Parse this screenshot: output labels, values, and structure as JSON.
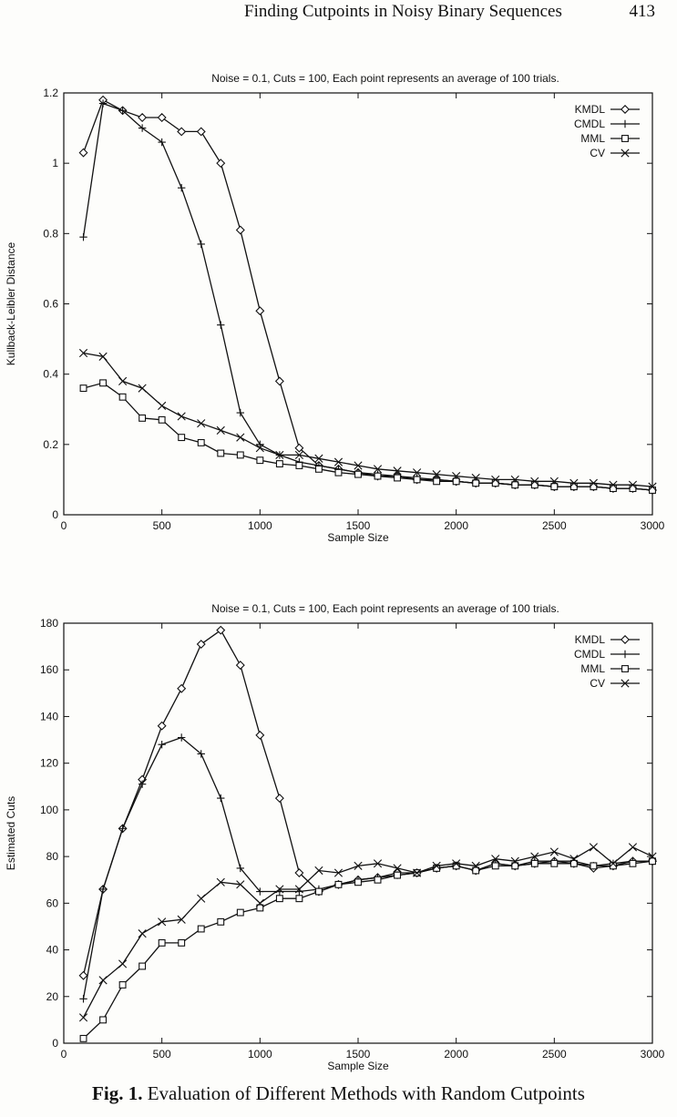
{
  "header": {
    "title": "Finding Cutpoints in Noisy Binary Sequences",
    "page_number": "413"
  },
  "caption": {
    "label": "Fig. 1.",
    "text": "Evaluation of Different Methods with Random Cutpoints"
  },
  "chart_data": [
    {
      "type": "line",
      "title": "Noise = 0.1, Cuts = 100, Each point represents an average of 100 trials.",
      "xlabel": "Sample Size",
      "ylabel": "Kullback-Leibler Distance",
      "xlim": [
        0,
        3000
      ],
      "ylim": [
        0,
        1.2
      ],
      "xticks": [
        0,
        500,
        1000,
        1500,
        2000,
        2500,
        3000
      ],
      "yticks": [
        0,
        0.2,
        0.4,
        0.6,
        0.8,
        1,
        1.2
      ],
      "legend_position": "top-right",
      "x": [
        100,
        200,
        300,
        400,
        500,
        600,
        700,
        800,
        900,
        1000,
        1100,
        1200,
        1300,
        1400,
        1500,
        1600,
        1700,
        1800,
        1900,
        2000,
        2100,
        2200,
        2300,
        2400,
        2500,
        2600,
        2700,
        2800,
        2900,
        3000
      ],
      "series": [
        {
          "name": "KMDL",
          "marker": "diamond",
          "values": [
            1.03,
            1.18,
            1.15,
            1.13,
            1.13,
            1.09,
            1.09,
            1.0,
            0.81,
            0.58,
            0.38,
            0.19,
            0.14,
            0.13,
            0.12,
            0.11,
            0.11,
            0.1,
            0.1,
            0.095,
            0.09,
            0.09,
            0.085,
            0.085,
            0.08,
            0.08,
            0.08,
            0.075,
            0.075,
            0.07
          ]
        },
        {
          "name": "CMDL",
          "marker": "plus",
          "values": [
            0.79,
            1.17,
            1.15,
            1.1,
            1.06,
            0.93,
            0.77,
            0.54,
            0.29,
            0.2,
            0.17,
            0.15,
            0.14,
            0.13,
            0.12,
            0.115,
            0.11,
            0.105,
            0.1,
            0.095,
            0.09,
            0.09,
            0.085,
            0.085,
            0.08,
            0.08,
            0.08,
            0.075,
            0.075,
            0.07
          ]
        },
        {
          "name": "MML",
          "marker": "square",
          "values": [
            0.36,
            0.375,
            0.335,
            0.275,
            0.27,
            0.22,
            0.205,
            0.175,
            0.17,
            0.155,
            0.145,
            0.14,
            0.13,
            0.12,
            0.115,
            0.11,
            0.105,
            0.1,
            0.095,
            0.095,
            0.09,
            0.09,
            0.085,
            0.085,
            0.08,
            0.08,
            0.08,
            0.075,
            0.075,
            0.07
          ]
        },
        {
          "name": "CV",
          "marker": "cross",
          "values": [
            0.46,
            0.45,
            0.38,
            0.36,
            0.31,
            0.28,
            0.26,
            0.24,
            0.22,
            0.19,
            0.17,
            0.17,
            0.16,
            0.15,
            0.14,
            0.13,
            0.125,
            0.12,
            0.115,
            0.11,
            0.105,
            0.1,
            0.1,
            0.095,
            0.095,
            0.09,
            0.09,
            0.085,
            0.085,
            0.08
          ]
        }
      ]
    },
    {
      "type": "line",
      "title": "Noise = 0.1, Cuts = 100, Each point represents an average of 100 trials.",
      "xlabel": "Sample Size",
      "ylabel": "Estimated Cuts",
      "xlim": [
        0,
        3000
      ],
      "ylim": [
        0,
        180
      ],
      "xticks": [
        0,
        500,
        1000,
        1500,
        2000,
        2500,
        3000
      ],
      "yticks": [
        0,
        20,
        40,
        60,
        80,
        100,
        120,
        140,
        160,
        180
      ],
      "legend_position": "top-right",
      "x": [
        100,
        200,
        300,
        400,
        500,
        600,
        700,
        800,
        900,
        1000,
        1100,
        1200,
        1300,
        1400,
        1500,
        1600,
        1700,
        1800,
        1900,
        2000,
        2100,
        2200,
        2300,
        2400,
        2500,
        2600,
        2700,
        2800,
        2900,
        3000
      ],
      "series": [
        {
          "name": "KMDL",
          "marker": "diamond",
          "values": [
            29,
            66,
            92,
            113,
            136,
            152,
            171,
            177,
            162,
            132,
            105,
            73,
            65,
            68,
            70,
            71,
            73,
            73,
            75,
            76,
            74,
            77,
            76,
            77,
            78,
            77,
            75,
            76,
            78,
            78
          ]
        },
        {
          "name": "CMDL",
          "marker": "plus",
          "values": [
            19,
            66,
            92,
            111,
            128,
            131,
            124,
            105,
            75,
            65,
            65,
            65,
            66,
            68,
            70,
            71,
            72,
            73,
            75,
            76,
            74,
            77,
            76,
            78,
            78,
            78,
            76,
            77,
            78,
            78
          ]
        },
        {
          "name": "MML",
          "marker": "square",
          "values": [
            2,
            10,
            25,
            33,
            43,
            43,
            49,
            52,
            56,
            58,
            62,
            62,
            65,
            68,
            69,
            70,
            72,
            73,
            75,
            76,
            74,
            76,
            76,
            77,
            77,
            77,
            76,
            76,
            77,
            78
          ]
        },
        {
          "name": "CV",
          "marker": "cross",
          "values": [
            11,
            27,
            34,
            47,
            52,
            53,
            62,
            69,
            68,
            60,
            66,
            66,
            74,
            73,
            76,
            77,
            75,
            73,
            76,
            77,
            76,
            79,
            78,
            80,
            82,
            79,
            84,
            77,
            84,
            80
          ]
        }
      ]
    }
  ]
}
